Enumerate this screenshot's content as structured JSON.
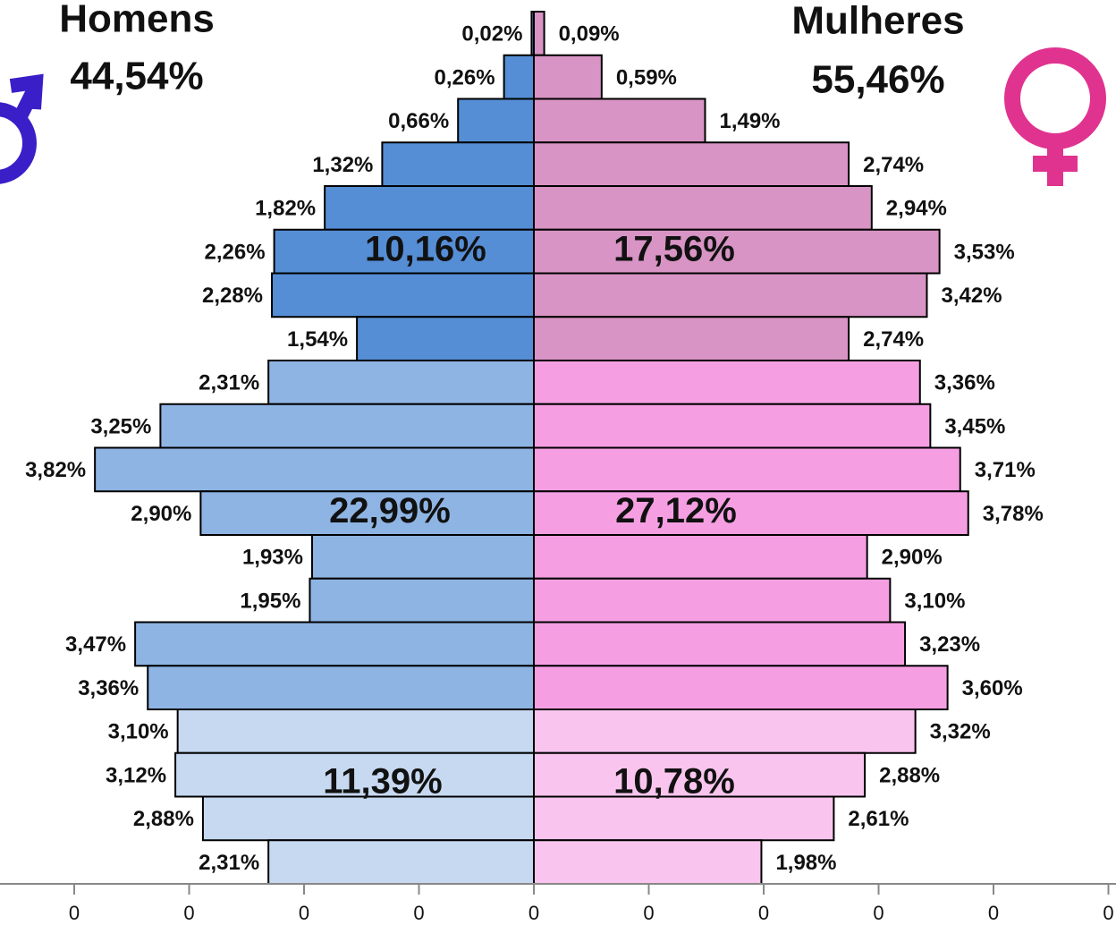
{
  "chart_data": {
    "type": "pyramid",
    "left_title": "Homens",
    "left_total": "44,54%",
    "right_title": "Mulheres",
    "right_total": "55,46%",
    "series": [
      {
        "name": "Homens",
        "side": "left",
        "values": [
          0.02,
          0.26,
          0.66,
          1.32,
          1.82,
          2.26,
          2.28,
          1.54,
          2.31,
          3.25,
          3.82,
          2.9,
          1.93,
          1.95,
          3.47,
          3.36,
          3.1,
          3.12,
          2.88,
          2.31
        ],
        "value_labels": [
          "0,02%",
          "0,26%",
          "0,66%",
          "1,32%",
          "1,82%",
          "2,26%",
          "2,28%",
          "1,54%",
          "2,31%",
          "3,25%",
          "3,82%",
          "2,90%",
          "1,93%",
          "1,95%",
          "3,47%",
          "3,36%",
          "3,10%",
          "3,12%",
          "2,88%",
          "2,31%"
        ],
        "colors": [
          "#558ed5",
          "#558ed5",
          "#558ed5",
          "#558ed5",
          "#558ed5",
          "#558ed5",
          "#558ed5",
          "#558ed5",
          "#8eb4e3",
          "#8eb4e3",
          "#8eb4e3",
          "#8eb4e3",
          "#8eb4e3",
          "#8eb4e3",
          "#8eb4e3",
          "#8eb4e3",
          "#c6d9f1",
          "#c6d9f1",
          "#c6d9f1",
          "#c6d9f1"
        ]
      },
      {
        "name": "Mulheres",
        "side": "right",
        "values": [
          0.09,
          0.59,
          1.49,
          2.74,
          2.94,
          3.53,
          3.42,
          2.74,
          3.36,
          3.45,
          3.71,
          3.78,
          2.9,
          3.1,
          3.23,
          3.6,
          3.32,
          2.88,
          2.61,
          1.98
        ],
        "value_labels": [
          "0,09%",
          "0,59%",
          "1,49%",
          "2,74%",
          "2,94%",
          "3,53%",
          "3,42%",
          "2,74%",
          "3,36%",
          "3,45%",
          "3,71%",
          "3,78%",
          "2,90%",
          "3,10%",
          "3,23%",
          "3,60%",
          "3,32%",
          "2,88%",
          "2,61%",
          "1,98%"
        ],
        "colors": [
          "#d894c4",
          "#d894c4",
          "#d894c4",
          "#d894c4",
          "#d894c4",
          "#d894c4",
          "#d894c4",
          "#d894c4",
          "#f59fe2",
          "#f59fe2",
          "#f59fe2",
          "#f59fe2",
          "#f59fe2",
          "#f59fe2",
          "#f59fe2",
          "#f59fe2",
          "#f9c5ee",
          "#f9c5ee",
          "#f9c5ee",
          "#f9c5ee"
        ]
      }
    ],
    "group_labels": [
      {
        "left": "10,16%",
        "right": "17,56%"
      },
      {
        "left": "22,99%",
        "right": "27,12%"
      },
      {
        "left": "11,39%",
        "right": "10,78%"
      }
    ],
    "xlim": [
      -4.646,
      5.066
    ],
    "xticks": [
      {
        "value": -4,
        "label": "0"
      },
      {
        "value": -3,
        "label": "0"
      },
      {
        "value": -2,
        "label": "0"
      },
      {
        "value": -1,
        "label": "0"
      },
      0,
      {
        "value": 1,
        "label": "0"
      },
      {
        "value": 2,
        "label": "0"
      },
      {
        "value": 3,
        "label": "0"
      },
      {
        "value": 4,
        "label": "0"
      },
      {
        "value": 5,
        "label": "0"
      }
    ]
  }
}
